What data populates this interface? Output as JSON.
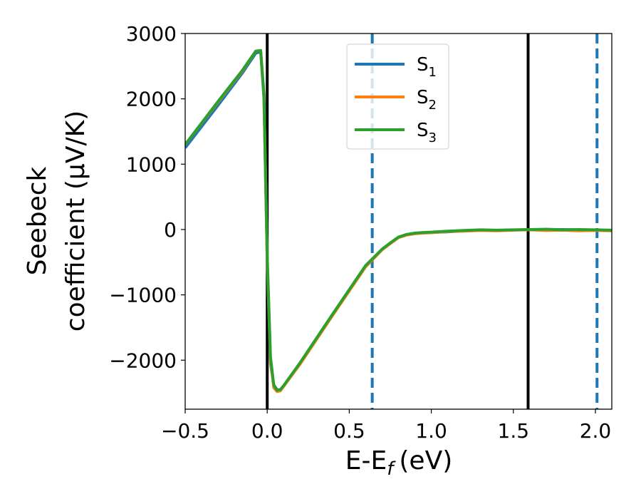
{
  "chart_data": {
    "type": "line",
    "xlabel": "E-E",
    "xlabel_sub": "f",
    "xlabel_unit": "(eV)",
    "ylabel_line1": "Seebeck",
    "ylabel_line2": "coefficient  (μV/K)",
    "xlim": [
      -0.5,
      2.1
    ],
    "ylim": [
      -2750,
      3000
    ],
    "x_ticks": [
      -0.5,
      0.0,
      0.5,
      1.0,
      1.5,
      2.0
    ],
    "x_tick_labels": [
      "−0.5",
      "0.0",
      "0.5",
      "1.0",
      "1.5",
      "2.0"
    ],
    "y_ticks": [
      3000,
      2000,
      1000,
      0,
      -1000,
      -2000
    ],
    "y_tick_labels": [
      "3000",
      "2000",
      "1000",
      "0",
      "−1000",
      "−2000"
    ],
    "legend_position": "upper-center",
    "vertical_lines": [
      {
        "x": 0.0,
        "style": "solid",
        "color": "#000000"
      },
      {
        "x": 1.59,
        "style": "solid",
        "color": "#000000"
      },
      {
        "x": 0.64,
        "style": "dashed",
        "color": "#1f77b4"
      },
      {
        "x": 2.01,
        "style": "dashed",
        "color": "#1f77b4"
      }
    ],
    "series": [
      {
        "name": "S",
        "name_sub": "1",
        "color": "#1f77b4",
        "x": [
          -0.5,
          -0.3,
          -0.15,
          -0.07,
          -0.04,
          -0.02,
          0.0,
          0.02,
          0.04,
          0.06,
          0.08,
          0.1,
          0.2,
          0.4,
          0.6,
          0.7,
          0.75,
          0.8,
          0.85,
          0.9,
          0.95,
          1.0,
          1.1,
          1.2,
          1.3,
          1.4,
          1.5,
          1.6,
          1.7,
          1.8,
          1.9,
          2.0,
          2.1
        ],
        "y": [
          1250,
          1900,
          2400,
          2700,
          2720,
          2000,
          -500,
          -2050,
          -2380,
          -2450,
          -2460,
          -2400,
          -2050,
          -1300,
          -560,
          -300,
          -210,
          -120,
          -80,
          -60,
          -50,
          -45,
          -35,
          -20,
          -10,
          -15,
          -8,
          0,
          -5,
          0,
          -5,
          -10,
          -12
        ]
      },
      {
        "name": "S",
        "name_sub": "2",
        "color": "#ff7f0e",
        "x": [
          -0.5,
          -0.3,
          -0.15,
          -0.07,
          -0.04,
          -0.02,
          0.0,
          0.02,
          0.04,
          0.06,
          0.08,
          0.1,
          0.2,
          0.4,
          0.6,
          0.7,
          0.75,
          0.8,
          0.85,
          0.9,
          0.95,
          1.0,
          1.1,
          1.2,
          1.3,
          1.4,
          1.5,
          1.6,
          1.7,
          1.8,
          1.9,
          2.0,
          2.1
        ],
        "y": [
          1300,
          1950,
          2430,
          2730,
          2740,
          2050,
          -450,
          -2000,
          -2420,
          -2480,
          -2470,
          -2400,
          -2060,
          -1310,
          -570,
          -310,
          -215,
          -125,
          -85,
          -65,
          -55,
          -50,
          -30,
          -25,
          -15,
          -20,
          -10,
          -5,
          -15,
          -10,
          -20,
          -15,
          -20
        ]
      },
      {
        "name": "S",
        "name_sub": "3",
        "color": "#2ca02c",
        "x": [
          -0.5,
          -0.3,
          -0.15,
          -0.07,
          -0.04,
          -0.02,
          0.0,
          0.02,
          0.04,
          0.06,
          0.08,
          0.1,
          0.2,
          0.4,
          0.6,
          0.7,
          0.75,
          0.8,
          0.85,
          0.9,
          0.95,
          1.0,
          1.1,
          1.2,
          1.3,
          1.4,
          1.5,
          1.6,
          1.7,
          1.8,
          1.9,
          2.0,
          2.1
        ],
        "y": [
          1300,
          1960,
          2440,
          2730,
          2740,
          2080,
          -400,
          -1950,
          -2380,
          -2460,
          -2450,
          -2390,
          -2040,
          -1290,
          -550,
          -300,
          -205,
          -115,
          -75,
          -55,
          -45,
          -40,
          -25,
          -15,
          -5,
          -10,
          -5,
          0,
          5,
          -5,
          0,
          -5,
          -10
        ]
      }
    ]
  }
}
